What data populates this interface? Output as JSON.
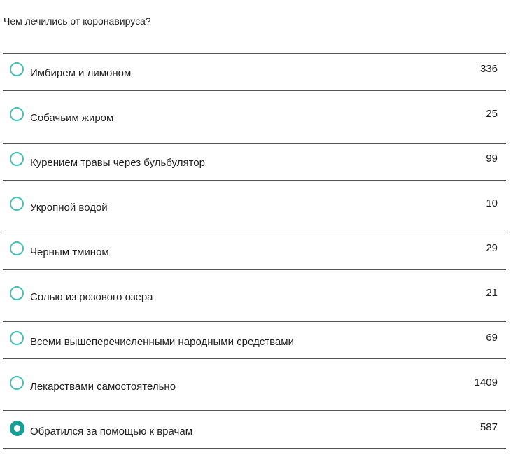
{
  "question": "Чем лечились от коронавируса?",
  "accent": "#14a095",
  "options": [
    {
      "label": "Имбирем и лимоном",
      "count": "336",
      "selected": false
    },
    {
      "label": "Собачьим жиром",
      "count": "25",
      "selected": false
    },
    {
      "label": "Курением травы через бульбулятор",
      "count": "99",
      "selected": false
    },
    {
      "label": "Укропной водой",
      "count": "10",
      "selected": false
    },
    {
      "label": "Черным тмином",
      "count": "29",
      "selected": false
    },
    {
      "label": "Солью из розового озера",
      "count": "21",
      "selected": false
    },
    {
      "label": "Всеми вышеперечисленными народными средствами",
      "count": "69",
      "selected": false
    },
    {
      "label": "Лекарствами самостоятельно",
      "count": "1409",
      "selected": false
    },
    {
      "label": "Обратился за помощью к врачам",
      "count": "587",
      "selected": true
    }
  ]
}
